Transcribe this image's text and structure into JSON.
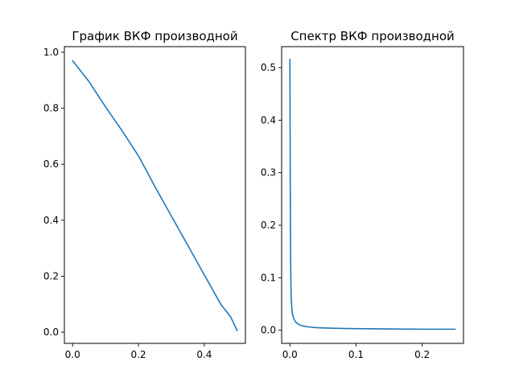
{
  "chart_data": [
    {
      "type": "line",
      "title": "График ВКФ производной",
      "xlabel": "",
      "ylabel": "",
      "xlim": [
        -0.025,
        0.525
      ],
      "ylim": [
        -0.04,
        1.02
      ],
      "xticks": [
        "0.0",
        "0.2",
        "0.4"
      ],
      "xtick_values": [
        0.0,
        0.2,
        0.4
      ],
      "yticks": [
        "0.0",
        "0.2",
        "0.4",
        "0.6",
        "0.8",
        "1.0"
      ],
      "ytick_values": [
        0.0,
        0.2,
        0.4,
        0.6,
        0.8,
        1.0
      ],
      "grid": false,
      "series": [
        {
          "color": "#1f77b4",
          "x": [
            0.0,
            0.01,
            0.02,
            0.05,
            0.1,
            0.15,
            0.2,
            0.25,
            0.3,
            0.35,
            0.4,
            0.45,
            0.48,
            0.5
          ],
          "y": [
            0.97,
            0.955,
            0.94,
            0.895,
            0.805,
            0.72,
            0.63,
            0.52,
            0.415,
            0.31,
            0.205,
            0.1,
            0.055,
            0.005
          ]
        }
      ]
    },
    {
      "type": "line",
      "title": "Спектр ВКФ производной",
      "xlabel": "",
      "ylabel": "",
      "xlim": [
        -0.0125,
        0.2625
      ],
      "ylim": [
        -0.025,
        0.54
      ],
      "xticks": [
        "0.0",
        "0.1",
        "0.2"
      ],
      "xtick_values": [
        0.0,
        0.1,
        0.2
      ],
      "yticks": [
        "0.0",
        "0.1",
        "0.2",
        "0.3",
        "0.4",
        "0.5"
      ],
      "ytick_values": [
        0.0,
        0.1,
        0.2,
        0.3,
        0.4,
        0.5
      ],
      "grid": false,
      "series": [
        {
          "color": "#1f77b4",
          "x": [
            0.0,
            0.0005,
            0.001,
            0.0015,
            0.002,
            0.003,
            0.004,
            0.006,
            0.008,
            0.01,
            0.015,
            0.02,
            0.03,
            0.04,
            0.06,
            0.08,
            0.1,
            0.15,
            0.2,
            0.25
          ],
          "y": [
            0.516,
            0.3,
            0.15,
            0.09,
            0.06,
            0.04,
            0.03,
            0.022,
            0.017,
            0.014,
            0.01,
            0.008,
            0.006,
            0.005,
            0.004,
            0.0035,
            0.003,
            0.0025,
            0.002,
            0.002
          ]
        }
      ]
    }
  ]
}
